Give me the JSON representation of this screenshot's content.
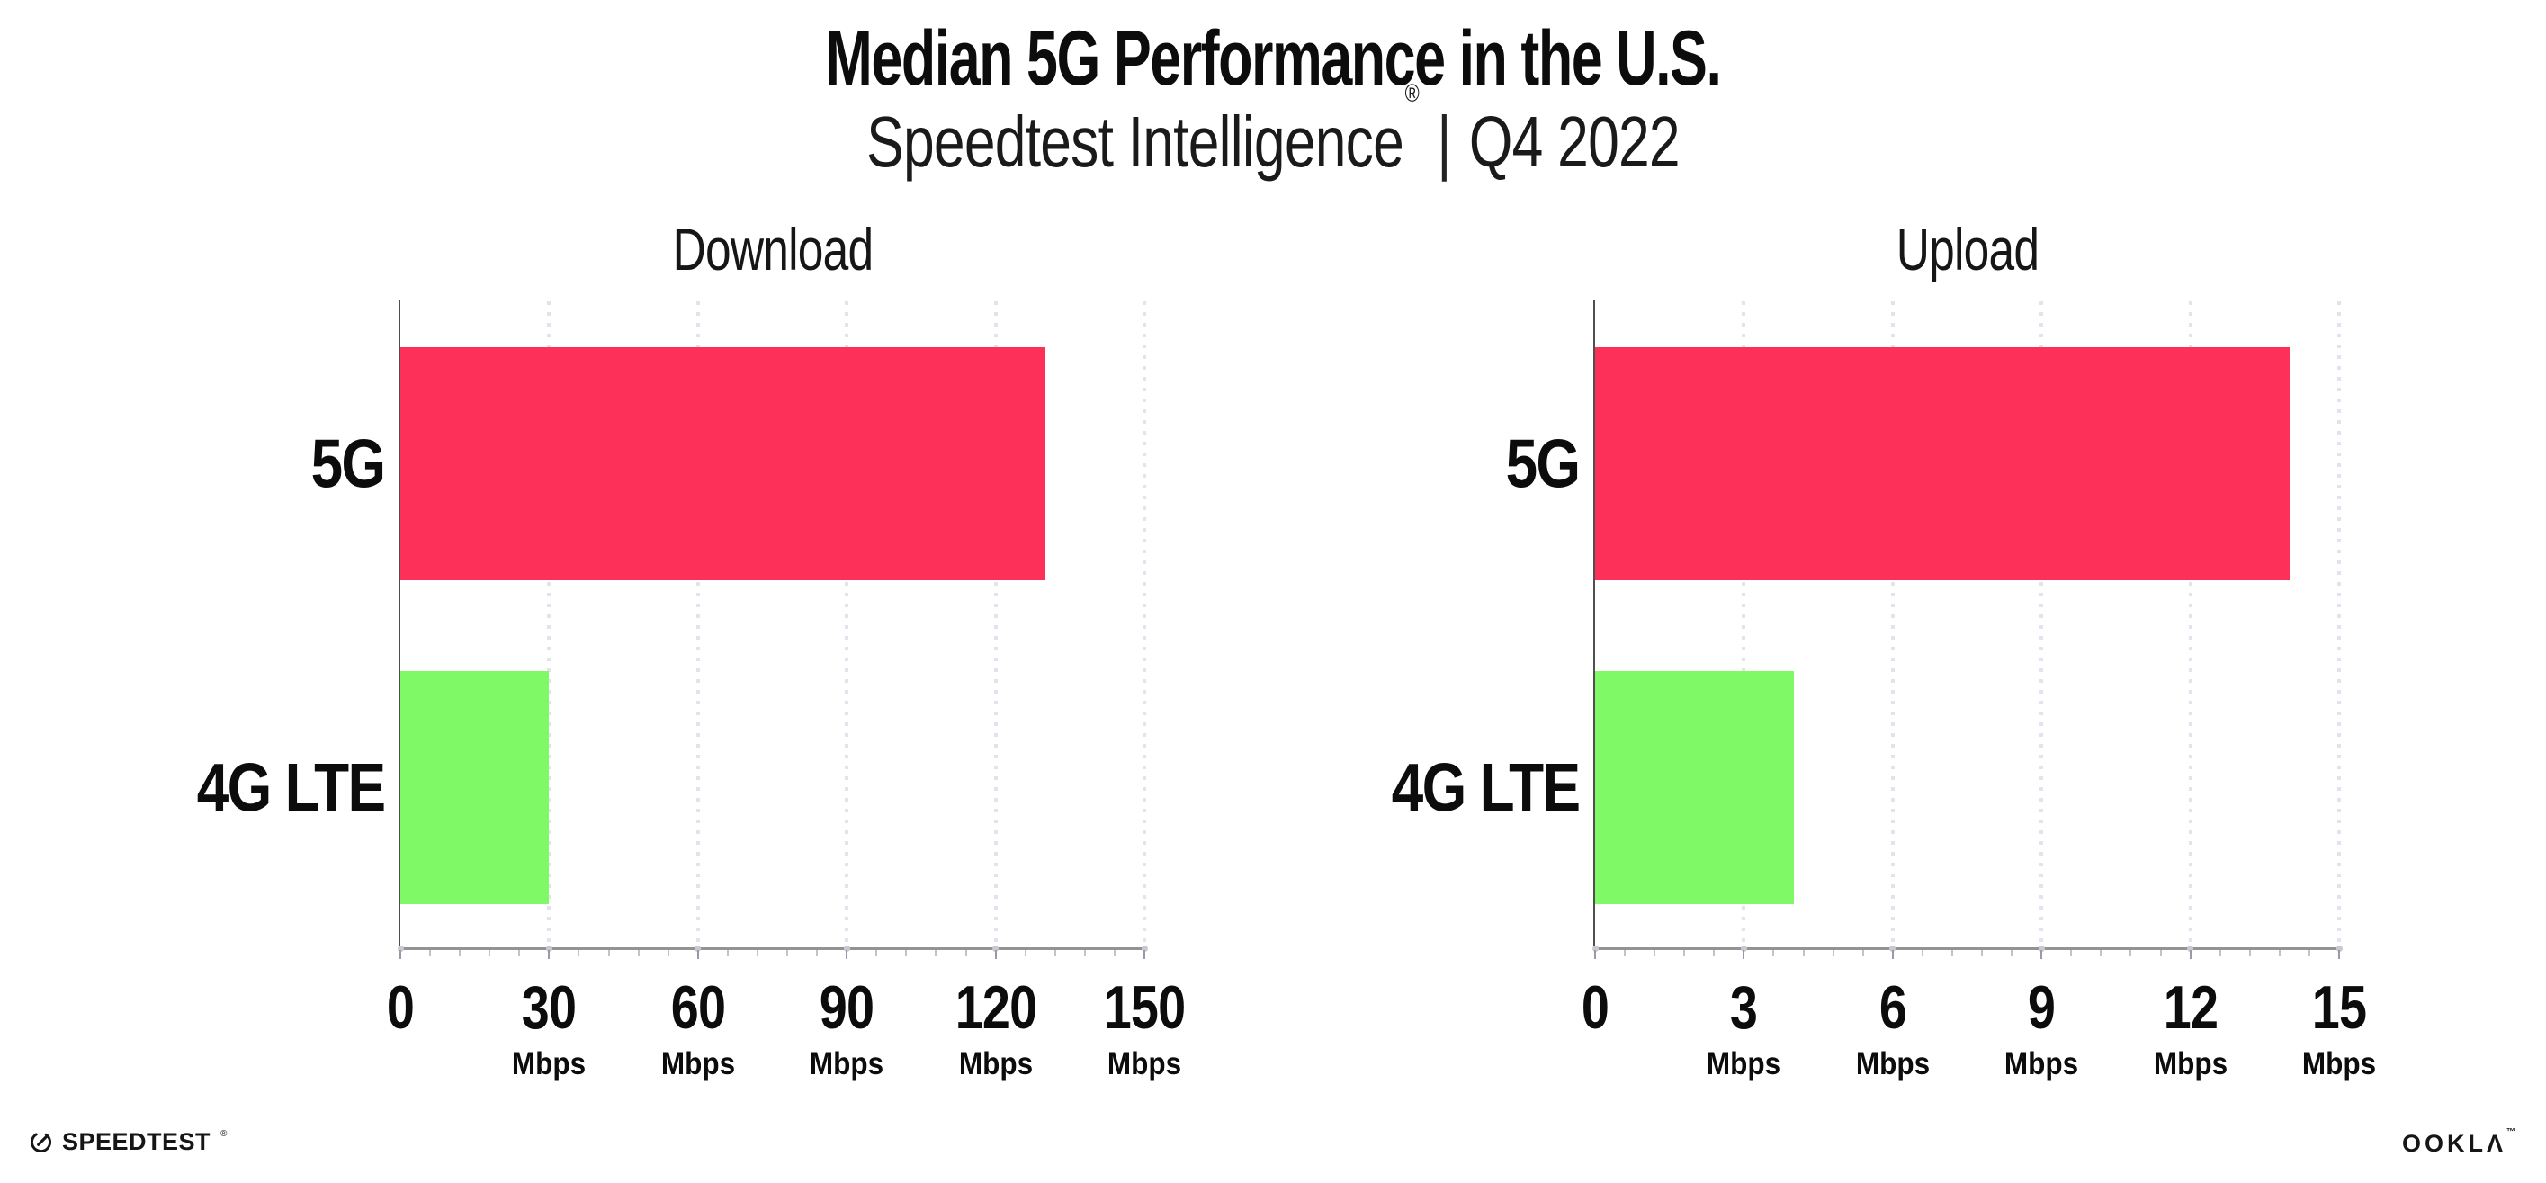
{
  "header": {
    "title": "Median 5G Performance in the U.S.",
    "subtitle_brand": "Speedtest Intelligence",
    "subtitle_reg": "®",
    "subtitle_divider": "|",
    "subtitle_period": "Q4 2022"
  },
  "colors": {
    "bar_5g": "#FC3058",
    "bar_4g_lte": "#7FFA66",
    "gridline": "#E3E3EE",
    "axis_line": "#939393",
    "axis_spine": "#4F4F4F",
    "text": "#0C0C0C"
  },
  "chart_data": [
    {
      "type": "bar",
      "orientation": "horizontal",
      "title": "Download",
      "categories": [
        "5G",
        "4G LTE"
      ],
      "values": [
        130,
        30
      ],
      "unit": "Mbps",
      "xlim": [
        0,
        150
      ],
      "xticks": [
        0,
        30,
        60,
        90,
        120,
        150
      ],
      "bar_colors": [
        "#FC3058",
        "#7FFA66"
      ],
      "grid": "dotted-vertical",
      "legend": "none"
    },
    {
      "type": "bar",
      "orientation": "horizontal",
      "title": "Upload",
      "categories": [
        "5G",
        "4G LTE"
      ],
      "values": [
        14,
        4
      ],
      "unit": "Mbps",
      "xlim": [
        0,
        15
      ],
      "xticks": [
        0,
        3,
        6,
        9,
        12,
        15
      ],
      "bar_colors": [
        "#FC3058",
        "#7FFA66"
      ],
      "grid": "dotted-vertical",
      "legend": "none"
    }
  ],
  "footer": {
    "speedtest_label": "SPEEDTEST",
    "speedtest_tm": "®",
    "ookla_label": "OOKLΛ",
    "ookla_tm": "™"
  }
}
